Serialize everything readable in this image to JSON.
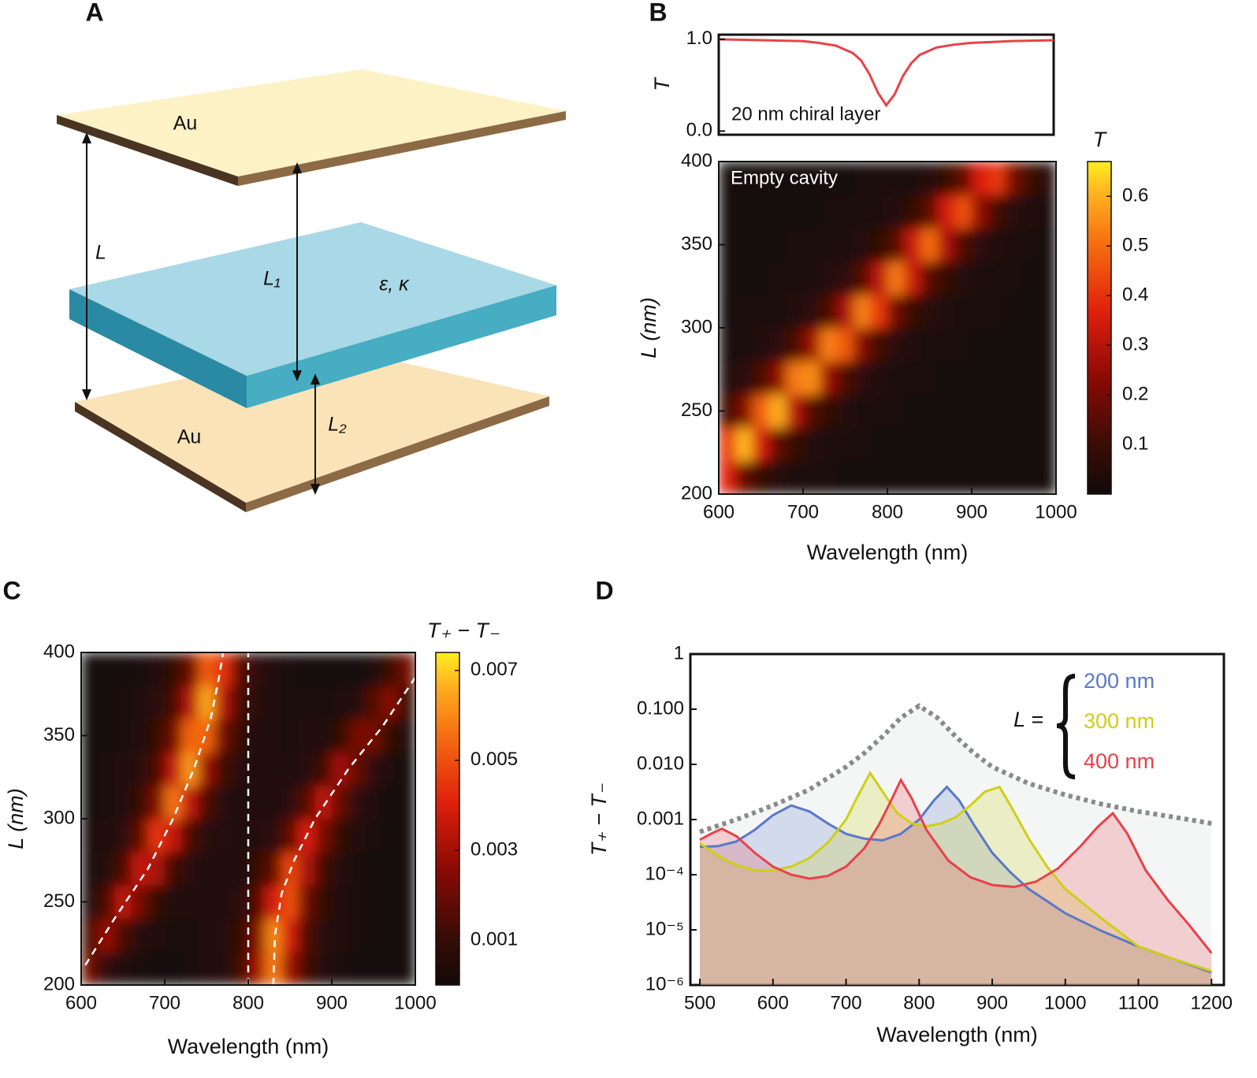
{
  "diagram": {
    "panel": "A",
    "labels": [
      "Au",
      "L",
      "L₁",
      "ε, κ",
      "L₂",
      "Au"
    ]
  },
  "chart_data": [
    {
      "type": "line",
      "panel": "B",
      "ylabel": "T",
      "annotation": "20 nm chiral layer",
      "color": "#e8424a",
      "xlim": [
        600,
        1000
      ],
      "ylim": [
        -0.04,
        1.05
      ],
      "yticks": [
        {
          "value": 0,
          "label": "0.0"
        },
        {
          "value": 1,
          "label": "1.0"
        }
      ],
      "x": [
        600,
        650,
        700,
        720,
        740,
        760,
        770,
        780,
        790,
        800,
        810,
        820,
        830,
        840,
        860,
        880,
        900,
        950,
        1000
      ],
      "values": [
        1.0,
        0.99,
        0.98,
        0.96,
        0.93,
        0.85,
        0.77,
        0.62,
        0.42,
        0.28,
        0.4,
        0.6,
        0.74,
        0.83,
        0.91,
        0.94,
        0.96,
        0.98,
        0.99
      ]
    },
    {
      "type": "heatmap",
      "annotation": "Empty cavity",
      "xlabel": "Wavelength (nm)",
      "ylabel": "L (nm)",
      "colorbar_title": "T",
      "xlim": [
        600,
        1000
      ],
      "ylim": [
        200,
        400
      ],
      "xticks": [
        600,
        700,
        800,
        900,
        1000
      ],
      "yticks": [
        200,
        250,
        300,
        350,
        400
      ],
      "zlim": [
        0,
        0.67
      ],
      "zticks": [
        0.1,
        0.2,
        0.3,
        0.4,
        0.5,
        0.6
      ],
      "x": [
        610,
        630,
        650,
        670,
        690,
        710,
        730,
        750,
        770,
        790,
        810,
        830,
        850,
        870,
        890,
        910,
        930,
        950,
        970,
        990
      ],
      "y": [
        210,
        230,
        250,
        270,
        290,
        310,
        330,
        350,
        370,
        390
      ],
      "z": [
        [
          0.38,
          0.17,
          0.09,
          0.05,
          0.03,
          0.02,
          0.02,
          0.01,
          0.01,
          0.01,
          0.01,
          0.01,
          0,
          0,
          0,
          0,
          0,
          0,
          0,
          0
        ],
        [
          0.41,
          0.61,
          0.35,
          0.16,
          0.09,
          0.05,
          0.03,
          0.02,
          0.02,
          0.01,
          0.01,
          0.01,
          0.01,
          0,
          0,
          0,
          0,
          0,
          0,
          0
        ],
        [
          0.11,
          0.22,
          0.48,
          0.6,
          0.3,
          0.14,
          0.08,
          0.05,
          0.03,
          0.02,
          0.02,
          0.01,
          0.01,
          0.01,
          0,
          0,
          0,
          0,
          0,
          0
        ],
        [
          0.04,
          0.07,
          0.12,
          0.24,
          0.52,
          0.55,
          0.26,
          0.13,
          0.07,
          0.04,
          0.03,
          0.02,
          0.02,
          0.01,
          0.01,
          0.01,
          0,
          0,
          0,
          0
        ],
        [
          0.02,
          0.03,
          0.04,
          0.07,
          0.12,
          0.26,
          0.53,
          0.47,
          0.22,
          0.11,
          0.06,
          0.04,
          0.03,
          0.02,
          0.02,
          0.01,
          0.01,
          0.01,
          0,
          0
        ],
        [
          0.01,
          0.02,
          0.02,
          0.03,
          0.04,
          0.07,
          0.13,
          0.28,
          0.53,
          0.41,
          0.19,
          0.09,
          0.06,
          0.04,
          0.03,
          0.02,
          0.02,
          0.01,
          0.01,
          0.01
        ],
        [
          0.01,
          0.01,
          0.01,
          0.02,
          0.02,
          0.03,
          0.05,
          0.07,
          0.14,
          0.31,
          0.52,
          0.33,
          0.15,
          0.08,
          0.05,
          0.03,
          0.02,
          0.02,
          0.01,
          0.01
        ],
        [
          0,
          0.01,
          0.01,
          0.01,
          0.02,
          0.02,
          0.02,
          0.03,
          0.05,
          0.08,
          0.15,
          0.33,
          0.5,
          0.28,
          0.13,
          0.07,
          0.04,
          0.03,
          0.02,
          0.01
        ],
        [
          0,
          0,
          0.01,
          0.01,
          0.01,
          0.01,
          0.02,
          0.02,
          0.02,
          0.03,
          0.05,
          0.08,
          0.16,
          0.35,
          0.45,
          0.24,
          0.11,
          0.06,
          0.04,
          0.02
        ],
        [
          0,
          0,
          0,
          0.01,
          0.01,
          0.01,
          0.01,
          0.01,
          0.02,
          0.02,
          0.02,
          0.03,
          0.05,
          0.09,
          0.17,
          0.36,
          0.41,
          0.2,
          0.1,
          0.05
        ]
      ]
    },
    {
      "type": "heatmap",
      "panel": "C",
      "xlabel": "Wavelength (nm)",
      "ylabel": "L (nm)",
      "colorbar_title": "T₊ − T₋",
      "xlim": [
        600,
        1000
      ],
      "ylim": [
        200,
        400
      ],
      "xticks": [
        600,
        700,
        800,
        900,
        1000
      ],
      "yticks": [
        200,
        250,
        300,
        350,
        400
      ],
      "zlim": [
        0,
        0.0074
      ],
      "zticks": [
        0.001,
        0.003,
        0.005,
        0.007
      ],
      "x": [
        610,
        630,
        650,
        670,
        690,
        710,
        730,
        750,
        770,
        790,
        810,
        830,
        850,
        870,
        890,
        910,
        930,
        950,
        970,
        990
      ],
      "y": [
        210,
        230,
        250,
        270,
        290,
        310,
        330,
        350,
        370,
        390
      ],
      "z": [
        [
          0.0021,
          0.0008,
          0.0004,
          0.0003,
          0.0002,
          0.0002,
          0.0003,
          0.0004,
          0.0006,
          0.0012,
          0.0029,
          0.0058,
          0.0029,
          0.0012,
          0.0006,
          0.0003,
          0.0002,
          0.0002,
          0.0001,
          0.0001
        ],
        [
          0.0014,
          0.0028,
          0.0014,
          0.0006,
          0.0004,
          0.0003,
          0.0003,
          0.0004,
          0.0006,
          0.001,
          0.0023,
          0.006,
          0.0038,
          0.0015,
          0.0007,
          0.0004,
          0.0003,
          0.0002,
          0.0001,
          0.0001
        ],
        [
          0.0006,
          0.0014,
          0.0035,
          0.0022,
          0.0009,
          0.0005,
          0.0004,
          0.0004,
          0.0005,
          0.0008,
          0.0015,
          0.0039,
          0.005,
          0.002,
          0.0009,
          0.0005,
          0.0003,
          0.0002,
          0.0001,
          0.0001
        ],
        [
          0.0003,
          0.0006,
          0.0014,
          0.0036,
          0.0031,
          0.0012,
          0.0007,
          0.0005,
          0.0005,
          0.0005,
          0.0009,
          0.0019,
          0.0048,
          0.0031,
          0.0012,
          0.0006,
          0.0003,
          0.0002,
          0.0001,
          0.0001
        ],
        [
          0.0003,
          0.0004,
          0.0008,
          0.0018,
          0.0045,
          0.0036,
          0.0014,
          0.0007,
          0.0006,
          0.0005,
          0.0006,
          0.0008,
          0.0018,
          0.004,
          0.0022,
          0.0009,
          0.0004,
          0.0003,
          0.0002,
          0.0001
        ],
        [
          0.0002,
          0.0003,
          0.0005,
          0.001,
          0.0024,
          0.0057,
          0.0035,
          0.0014,
          0.0007,
          0.0005,
          0.0005,
          0.0005,
          0.0008,
          0.0016,
          0.0035,
          0.0019,
          0.0008,
          0.0004,
          0.0002,
          0.0001
        ],
        [
          0.0002,
          0.0003,
          0.0004,
          0.0007,
          0.0014,
          0.0035,
          0.0063,
          0.0029,
          0.0012,
          0.0007,
          0.0005,
          0.0004,
          0.0004,
          0.0006,
          0.0012,
          0.003,
          0.0019,
          0.0008,
          0.0004,
          0.0002
        ],
        [
          0.0002,
          0.0002,
          0.0003,
          0.0005,
          0.001,
          0.0021,
          0.0054,
          0.0054,
          0.0021,
          0.001,
          0.0005,
          0.0004,
          0.0003,
          0.0004,
          0.0005,
          0.0009,
          0.0022,
          0.0022,
          0.0009,
          0.0004
        ],
        [
          0.0001,
          0.0002,
          0.0003,
          0.0004,
          0.0007,
          0.0013,
          0.0033,
          0.0065,
          0.0033,
          0.0013,
          0.0007,
          0.0004,
          0.0003,
          0.0003,
          0.0003,
          0.0004,
          0.0006,
          0.0016,
          0.0025,
          0.001
        ],
        [
          0.0001,
          0.0002,
          0.0002,
          0.0003,
          0.0005,
          0.0009,
          0.002,
          0.0052,
          0.0044,
          0.0017,
          0.0008,
          0.0004,
          0.0003,
          0.0002,
          0.0002,
          0.0002,
          0.0002,
          0.0004,
          0.0011,
          0.0022
        ]
      ],
      "guides": [
        {
          "x": [
            605,
            640,
            680,
            710,
            735,
            755,
            765,
            770
          ],
          "y": [
            212,
            240,
            270,
            300,
            330,
            360,
            385,
            400
          ]
        },
        {
          "x": [
            800,
            800
          ],
          "y": [
            200,
            400
          ]
        },
        {
          "x": [
            830,
            832,
            840,
            855,
            880,
            920,
            960,
            1000
          ],
          "y": [
            200,
            230,
            255,
            275,
            300,
            330,
            355,
            385
          ]
        }
      ]
    },
    {
      "type": "line",
      "panel": "D",
      "xlabel": "Wavelength (nm)",
      "ylabel": "T₊ − T₋",
      "log_y": true,
      "legend_title": "L =",
      "xlim": [
        487,
        1217
      ],
      "ylim": [
        1e-06,
        1
      ],
      "xticks": [
        500,
        600,
        700,
        800,
        900,
        1000,
        1100,
        1200
      ],
      "yticks": [
        {
          "value": 1e-06,
          "label": "10⁻⁶"
        },
        {
          "value": 1e-05,
          "label": "10⁻⁵"
        },
        {
          "value": 0.0001,
          "label": "10⁻⁴"
        },
        0.001,
        {
          "value": 0.01,
          "label": "0.010"
        },
        {
          "value": 0.1,
          "label": "0.100"
        },
        1
      ],
      "series": [
        {
          "color": "#8a8a8a",
          "dash": true,
          "x": [
            500,
            550,
            600,
            650,
            700,
            725,
            750,
            775,
            800,
            825,
            850,
            875,
            900,
            950,
            1000,
            1050,
            1100,
            1150,
            1200
          ],
          "values": [
            0.0006,
            0.001,
            0.0018,
            0.0035,
            0.009,
            0.016,
            0.032,
            0.07,
            0.115,
            0.07,
            0.032,
            0.016,
            0.009,
            0.0045,
            0.0028,
            0.0019,
            0.0014,
            0.0011,
            0.00085
          ]
        },
        {
          "name": "200 nm",
          "color": "#5a78c8",
          "x": [
            500,
            525,
            550,
            575,
            600,
            625,
            650,
            675,
            700,
            725,
            750,
            775,
            800,
            820,
            838,
            855,
            875,
            900,
            925,
            950,
            1000,
            1050,
            1100,
            1150,
            1200
          ],
          "values": [
            0.00032,
            0.00033,
            0.0004,
            0.00065,
            0.0012,
            0.0018,
            0.0014,
            0.00085,
            0.00055,
            0.00045,
            0.00042,
            0.00055,
            0.001,
            0.0022,
            0.0039,
            0.0022,
            0.0008,
            0.00025,
            0.00011,
            5.5e-05,
            2e-05,
            9.5e-06,
            5e-06,
            2.9e-06,
            1.7e-06
          ]
        },
        {
          "name": "300 nm",
          "color": "#cfcf14",
          "x": [
            500,
            525,
            550,
            575,
            600,
            625,
            650,
            675,
            700,
            715,
            733,
            750,
            770,
            790,
            810,
            830,
            850,
            870,
            890,
            910,
            925,
            950,
            975,
            1000,
            1050,
            1100,
            1150,
            1200
          ],
          "values": [
            0.00037,
            0.00022,
            0.00015,
            0.00012,
            0.00012,
            0.00014,
            0.0002,
            0.00038,
            0.001,
            0.0025,
            0.007,
            0.0032,
            0.0013,
            0.00085,
            0.00075,
            0.00085,
            0.0011,
            0.0018,
            0.0032,
            0.0039,
            0.0018,
            0.00045,
            0.00014,
            5.5e-05,
            1.6e-05,
            5e-06,
            2.9e-06,
            1.8e-06
          ]
        },
        {
          "name": "400 nm",
          "color": "#e8424a",
          "x": [
            500,
            515,
            530,
            550,
            575,
            600,
            625,
            650,
            675,
            700,
            725,
            745,
            760,
            775,
            790,
            810,
            840,
            870,
            900,
            930,
            960,
            990,
            1020,
            1045,
            1065,
            1085,
            1110,
            1140,
            1170,
            1200
          ],
          "values": [
            0.00043,
            0.00055,
            0.00068,
            0.0005,
            0.00025,
            0.00014,
            0.0001,
            8.5e-05,
            9.5e-05,
            0.00014,
            0.0003,
            0.0008,
            0.002,
            0.0052,
            0.0024,
            0.00065,
            0.00018,
            9e-05,
            6.5e-05,
            6e-05,
            7.5e-05,
            0.00013,
            0.00032,
            0.00075,
            0.0013,
            0.00055,
            0.00012,
            3.5e-05,
            1.2e-05,
            3.8e-06
          ]
        }
      ]
    }
  ]
}
